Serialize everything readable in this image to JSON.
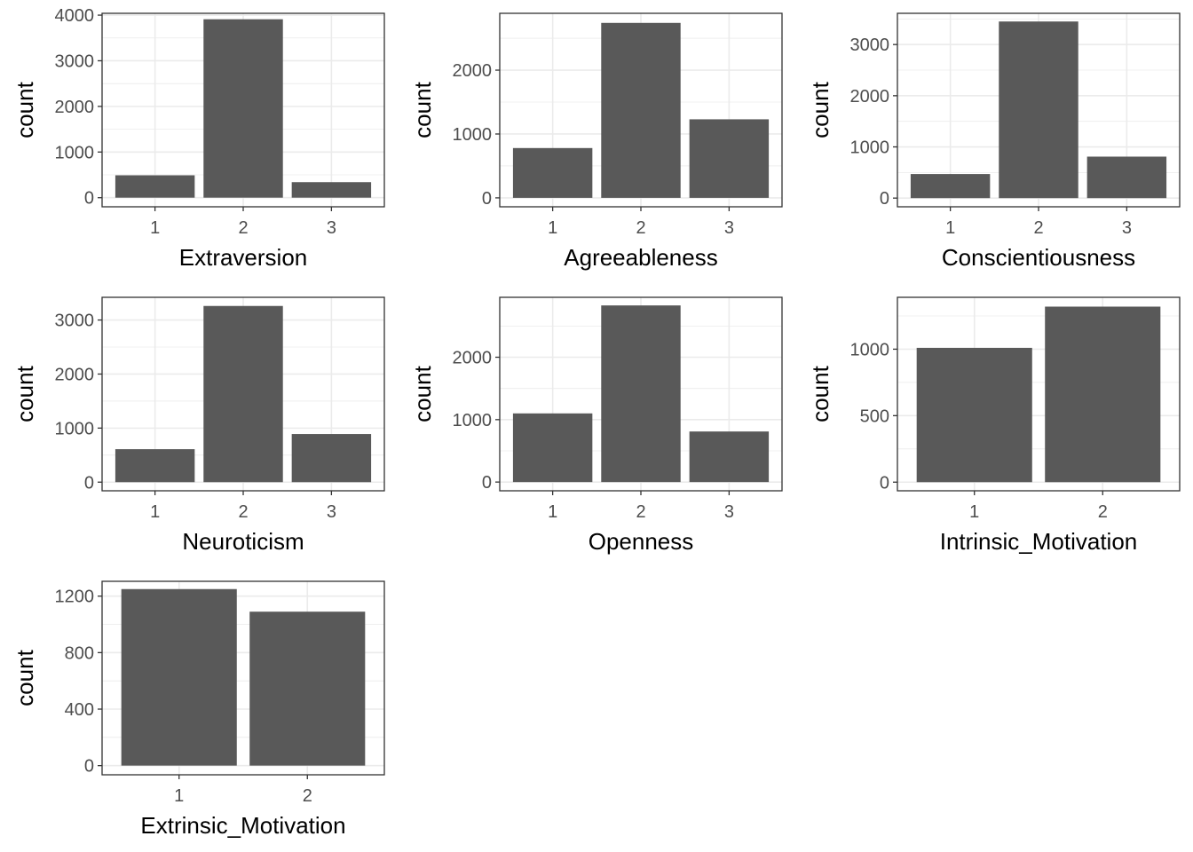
{
  "chart_data": [
    {
      "type": "bar",
      "xlabel": "Extraversion",
      "ylabel": "count",
      "categories": [
        "1",
        "2",
        "3"
      ],
      "values": [
        490,
        3910,
        340
      ],
      "ylim": [
        -200,
        4040
      ],
      "yticks": [
        0,
        1000,
        2000,
        3000,
        4000
      ],
      "ygrid_minor": true
    },
    {
      "type": "bar",
      "xlabel": "Agreeableness",
      "ylabel": "count",
      "categories": [
        "1",
        "2",
        "3"
      ],
      "values": [
        780,
        2740,
        1230
      ],
      "ylim": [
        -140,
        2890
      ],
      "yticks": [
        0,
        1000,
        2000
      ],
      "ygrid_minor": true
    },
    {
      "type": "bar",
      "xlabel": "Conscientiousness",
      "ylabel": "count",
      "categories": [
        "1",
        "2",
        "3"
      ],
      "values": [
        470,
        3450,
        810
      ],
      "ylim": [
        -170,
        3610
      ],
      "yticks": [
        0,
        1000,
        2000,
        3000
      ],
      "ygrid_minor": true
    },
    {
      "type": "bar",
      "xlabel": "Neuroticism",
      "ylabel": "count",
      "categories": [
        "1",
        "2",
        "3"
      ],
      "values": [
        610,
        3260,
        890
      ],
      "ylim": [
        -160,
        3420
      ],
      "yticks": [
        0,
        1000,
        2000,
        3000
      ],
      "ygrid_minor": true
    },
    {
      "type": "bar",
      "xlabel": "Openness",
      "ylabel": "count",
      "categories": [
        "1",
        "2",
        "3"
      ],
      "values": [
        1100,
        2830,
        810
      ],
      "ylim": [
        -140,
        2960
      ],
      "yticks": [
        0,
        1000,
        2000
      ],
      "ygrid_minor": true
    },
    {
      "type": "bar",
      "xlabel": "Intrinsic_Motivation",
      "ylabel": "count",
      "categories": [
        "1",
        "2"
      ],
      "values": [
        1010,
        1320
      ],
      "ylim": [
        -65,
        1390
      ],
      "yticks": [
        0,
        500,
        1000
      ],
      "ygrid_minor": true
    },
    {
      "type": "bar",
      "xlabel": "Extrinsic_Motivation",
      "ylabel": "count",
      "categories": [
        "1",
        "2"
      ],
      "values": [
        1250,
        1090
      ],
      "ylim": [
        -65,
        1305
      ],
      "yticks": [
        0,
        400,
        800,
        1200
      ],
      "ygrid_minor": true
    }
  ],
  "style": {
    "bar_color": "#595959",
    "grid_color": "#ebebeb",
    "border_color": "#333333",
    "background": "#ffffff"
  }
}
